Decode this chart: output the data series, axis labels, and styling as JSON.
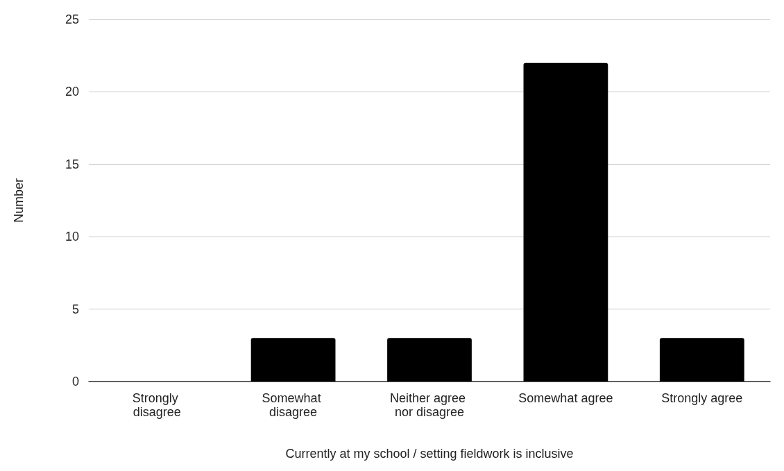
{
  "chart_data": {
    "type": "bar",
    "xlabel": "Currently at my school / setting fieldwork is inclusive",
    "ylabel": "Number",
    "categories": [
      "Strongly disagree",
      "Somewhat disagree",
      "Neither agree nor disagree",
      "Somewhat agree",
      "Strongly agree"
    ],
    "values": [
      0,
      3,
      3,
      22,
      3
    ],
    "color": "#000000",
    "ylim": [
      0,
      25
    ],
    "yticks": [
      0,
      5,
      10,
      15,
      20,
      25
    ],
    "grid": "y"
  }
}
